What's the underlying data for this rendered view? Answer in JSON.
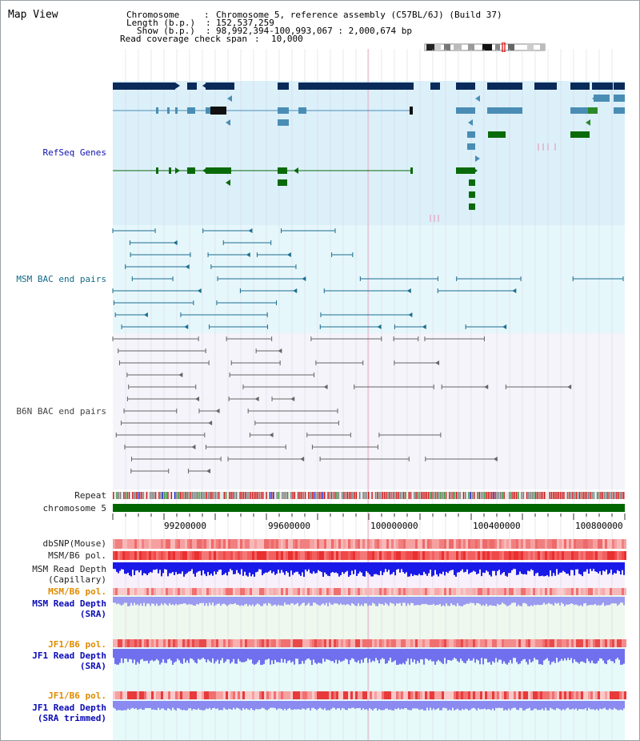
{
  "title": "Map View",
  "info": {
    "chromosome_key": "Chromosome",
    "chromosome_val": "Chromosome 5, reference assembly (C57BL/6J) (Build 37)",
    "length_key": "Length (b.p.)",
    "length_val": "152,537,259",
    "show_key": "Show (b.p.)",
    "show_val": "98,992,394-100,993,067 : 2,000,674 bp",
    "coverage_key": "Read coverage check span",
    "coverage_val": "10,000"
  },
  "tracks": {
    "refseq": "RefSeq Genes",
    "msm_bac": "MSM BAC end pairs",
    "b6n_bac": "B6N BAC end pairs",
    "repeat": "Repeat",
    "chromosome": "chromosome 5",
    "dbsnp": "dbSNP(Mouse)",
    "msm_b6_pol": "MSM/B6 pol.",
    "msm_depth_cap_1": "MSM Read Depth",
    "msm_depth_cap_2": "(Capillary)",
    "msm_b6_pol_2": "MSM/B6 pol.",
    "msm_depth_sra_1": "MSM Read Depth",
    "msm_depth_sra_2": "(SRA)",
    "jf1_b6_pol": "JF1/B6 pol.",
    "jf1_depth_sra_1": "JF1 Read Depth",
    "jf1_depth_sra_2": "(SRA)",
    "jf1_b6_pol_2": "JF1/B6 pol.",
    "jf1_depth_trim_1": "JF1 Read Depth",
    "jf1_depth_trim_2": "(SRA trimmed)"
  },
  "scale_ticks": [
    "99200000",
    "99600000",
    "100000000",
    "100400000",
    "100800000"
  ],
  "colors": {
    "refseq_bg": "#dcf0fa",
    "msm_bg": "#e6f7fb",
    "b6n_bg": "#f4f4fa",
    "chromosome_bar": "#006600",
    "gene_navy": "#0a2a5a",
    "gene_blue": "#4a8db4",
    "gene_green": "#0a6a0a",
    "depth_blue": "#2020e0",
    "pol_red": "#f05050"
  }
}
